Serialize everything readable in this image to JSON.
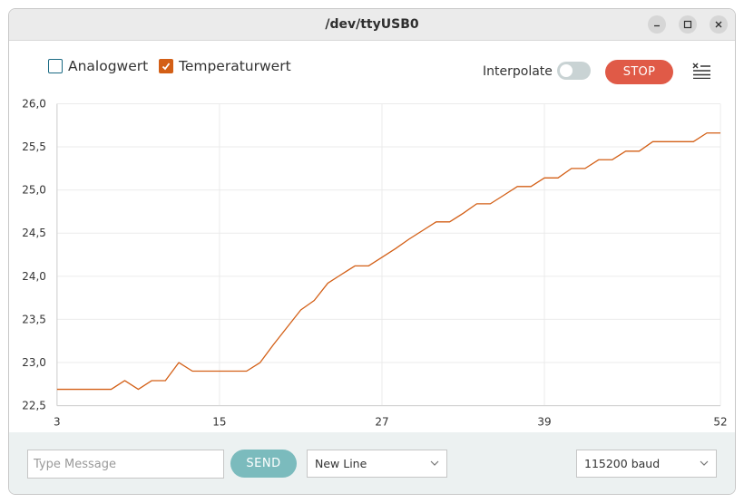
{
  "window": {
    "title": "/dev/ttyUSB0",
    "controls": [
      "minimize-icon",
      "maximize-icon",
      "close-icon"
    ]
  },
  "toolbar": {
    "series": [
      {
        "label": "Analogwert",
        "checked": false
      },
      {
        "label": "Temperaturwert",
        "checked": true
      }
    ],
    "interpolate_label": "Interpolate",
    "interpolate_on": false,
    "stop_label": "STOP",
    "clear_icon": "clear-list-icon"
  },
  "colors": {
    "accent": "#d35f16",
    "stop": "#e05a47",
    "send": "#7bbbbd",
    "checkbox_border": "#1a6a83"
  },
  "chart_data": {
    "type": "line",
    "title": "",
    "xlabel": "",
    "ylabel": "",
    "xlim": [
      3,
      52
    ],
    "ylim": [
      22.5,
      26.0
    ],
    "x_ticks": [
      "3",
      "15",
      "27",
      "39",
      "52"
    ],
    "x_tick_values": [
      3,
      15,
      27,
      39,
      52
    ],
    "y_ticks": [
      "26,0",
      "25,5",
      "25,0",
      "24,5",
      "24,0",
      "23,5",
      "23,0",
      "22,5"
    ],
    "y_tick_values": [
      26.0,
      25.5,
      25.0,
      24.5,
      24.0,
      23.5,
      23.0,
      22.5
    ],
    "grid": true,
    "series": [
      {
        "name": "Temperaturwert",
        "color": "#d35f16",
        "x": [
          3,
          4,
          5,
          6,
          7,
          8,
          9,
          10,
          11,
          12,
          13,
          14,
          15,
          16,
          17,
          18,
          19,
          20,
          21,
          22,
          23,
          24,
          25,
          26,
          27,
          28,
          29,
          30,
          31,
          32,
          33,
          34,
          35,
          36,
          37,
          38,
          39,
          40,
          41,
          42,
          43,
          44,
          45,
          46,
          47,
          48,
          49,
          50,
          51,
          52
        ],
        "y": [
          22.69,
          22.69,
          22.69,
          22.69,
          22.69,
          22.79,
          22.69,
          22.79,
          22.79,
          23.0,
          22.9,
          22.9,
          22.9,
          22.9,
          22.9,
          23.0,
          23.21,
          23.41,
          23.61,
          23.72,
          23.92,
          24.02,
          24.12,
          24.12,
          24.22,
          24.32,
          24.43,
          24.53,
          24.63,
          24.63,
          24.73,
          24.84,
          24.84,
          24.94,
          25.04,
          25.04,
          25.14,
          25.14,
          25.25,
          25.25,
          25.35,
          25.35,
          25.45,
          25.45,
          25.56,
          25.56,
          25.56,
          25.56,
          25.66,
          25.66
        ]
      }
    ]
  },
  "bottom": {
    "message_placeholder": "Type Message",
    "send_label": "SEND",
    "line_ending": "New Line",
    "baud": "115200 baud"
  }
}
